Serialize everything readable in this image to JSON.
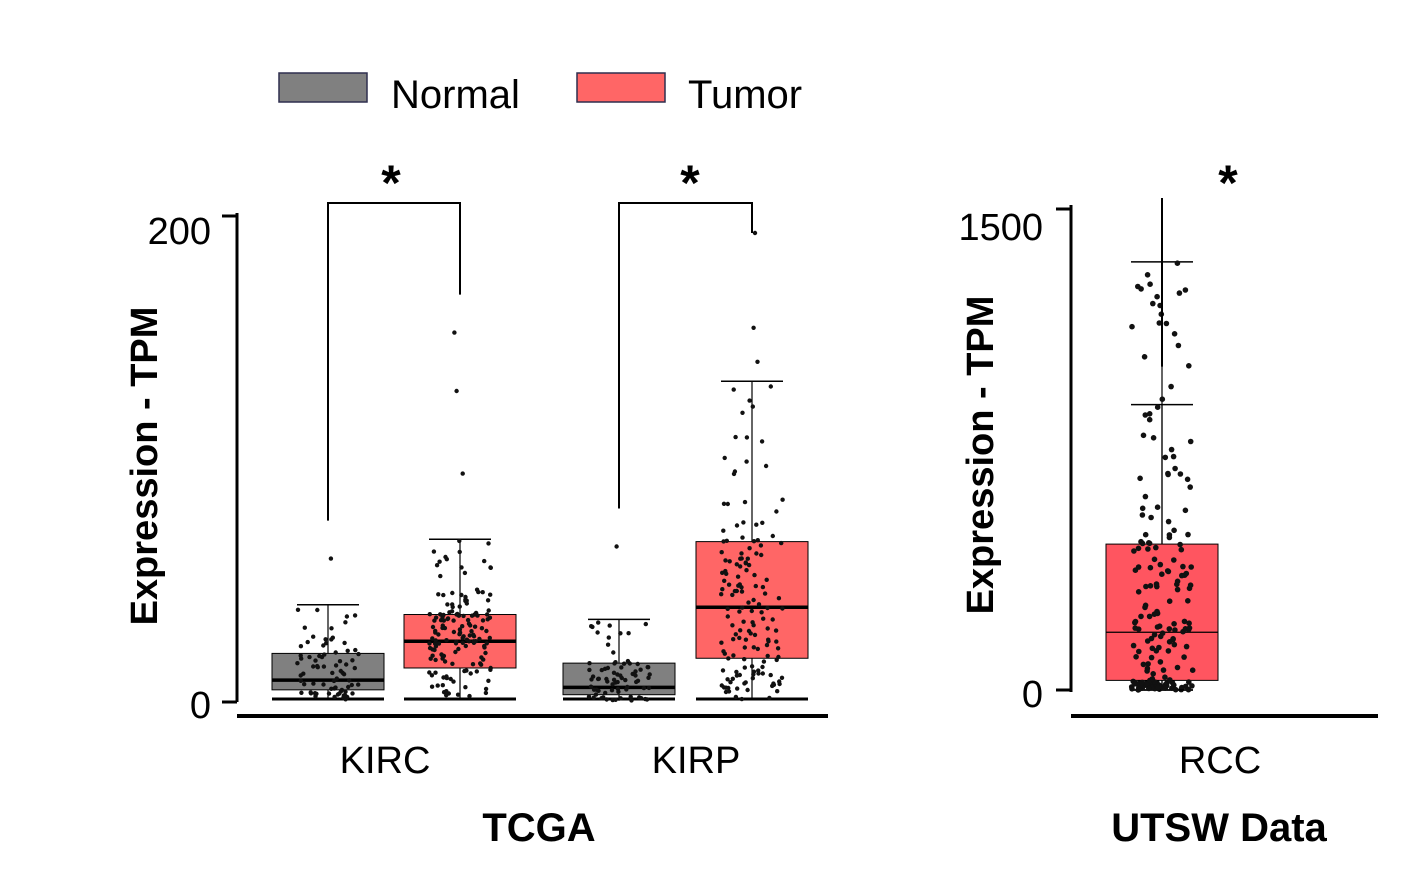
{
  "legend": [
    {
      "label": "Normal",
      "color": "#808080"
    },
    {
      "label": "Tumor",
      "color": "#ff6666"
    }
  ],
  "significance_mark": "*",
  "chart_data": [
    {
      "type": "box",
      "title": "",
      "xlabel": "TCGA",
      "ylabel": "Expression - TPM",
      "ylim": [
        0,
        200
      ],
      "yticks": [
        "0",
        "200"
      ],
      "categories": [
        "KIRC",
        "KIRP"
      ],
      "series": [
        {
          "name": "Normal",
          "color": "#808080",
          "boxes": [
            {
              "category": "KIRC",
              "min": 1,
              "q1": 5,
              "median": 9,
              "q3": 20,
              "max": 40,
              "outliers": [
                59
              ]
            },
            {
              "category": "KIRP",
              "min": 0.5,
              "q1": 3,
              "median": 6,
              "q3": 16,
              "max": 34,
              "outliers": [
                64
              ]
            }
          ]
        },
        {
          "name": "Tumor",
          "color": "#ff6666",
          "boxes": [
            {
              "category": "KIRC",
              "min": 1,
              "q1": 14,
              "median": 25,
              "q3": 36,
              "max": 67,
              "outliers": [
                94,
                128,
                152
              ]
            },
            {
              "category": "KIRP",
              "min": 1,
              "q1": 18,
              "median": 39,
              "q3": 66,
              "max": 132,
              "outliers": [
                140,
                154,
                193
              ]
            }
          ]
        }
      ],
      "significance": [
        {
          "category": "KIRC",
          "mark": "*"
        },
        {
          "category": "KIRP",
          "mark": "*"
        }
      ]
    },
    {
      "type": "box",
      "title": "",
      "xlabel": "UTSW Data",
      "ylabel": "Expression - TPM",
      "ylim": [
        0,
        1500
      ],
      "yticks": [
        "0",
        "1500"
      ],
      "categories": [
        "RCC"
      ],
      "series": [
        {
          "name": "Normal",
          "color": "#666666",
          "boxes": [
            {
              "category": "RCC",
              "min": 0,
              "q1": 50,
              "median": 90,
              "q3": 130,
              "max": 890,
              "outliers": []
            }
          ]
        },
        {
          "name": "Tumor",
          "color": "#ff5560",
          "boxes": [
            {
              "category": "RCC",
              "min": 0,
              "q1": 30,
              "median": 180,
              "q3": 455,
              "max": 1335,
              "outliers": []
            }
          ]
        }
      ],
      "significance": [
        {
          "category": "RCC",
          "mark": "*"
        }
      ]
    }
  ]
}
